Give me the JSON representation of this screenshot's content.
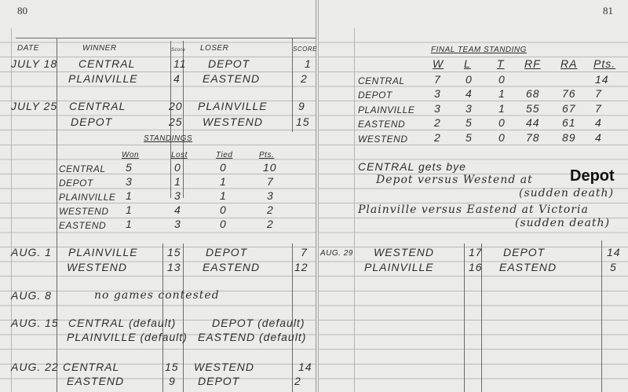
{
  "left_page": {
    "page_number": "80",
    "headers": {
      "date": "DATE",
      "winner": "WINNER",
      "winner_score": "Score",
      "loser": "LOSER",
      "loser_score": "SCORE"
    },
    "games": [
      {
        "date": "JULY 18",
        "winner": "CENTRAL",
        "ws": "11",
        "loser": "DEPOT",
        "ls": "1"
      },
      {
        "date": "",
        "winner": "PLAINVILLE",
        "ws": "4",
        "loser": "EASTEND",
        "ls": "2"
      },
      {
        "date": "JULY 25",
        "winner": "CENTRAL",
        "ws": "20",
        "loser": "PLAINVILLE",
        "ls": "9"
      },
      {
        "date": "",
        "winner": "DEPOT",
        "ws": "25",
        "loser": "WESTEND",
        "ls": "15"
      },
      {
        "date": "AUG. 1",
        "winner": "PLAINVILLE",
        "ws": "15",
        "loser": "DEPOT",
        "ls": "7"
      },
      {
        "date": "",
        "winner": "WESTEND",
        "ws": "13",
        "loser": "EASTEND",
        "ls": "12"
      },
      {
        "date": "AUG. 15",
        "winner": "CENTRAL (default)",
        "loser": "DEPOT (default)"
      },
      {
        "date": "",
        "winner": "PLAINVILLE (default)",
        "loser": "EASTEND (default)"
      },
      {
        "date": "AUG. 22",
        "winner": "CENTRAL",
        "ws": "15",
        "loser": "WESTEND",
        "ls": "14"
      },
      {
        "date": "",
        "winner": "EASTEND",
        "ws": "9",
        "loser": "DEPOT",
        "ls": "2"
      }
    ],
    "aug8": {
      "date": "AUG. 8",
      "note": "no games contested"
    },
    "standings": {
      "title": "STANDINGS",
      "headers": [
        "Won",
        "Lost",
        "Tied",
        "Pts."
      ],
      "rows": [
        {
          "team": "CENTRAL",
          "won": "5",
          "lost": "0",
          "tied": "0",
          "pts": "10"
        },
        {
          "team": "DEPOT",
          "won": "3",
          "lost": "1",
          "tied": "1",
          "pts": "7"
        },
        {
          "team": "PLAINVILLE",
          "won": "1",
          "lost": "3",
          "tied": "1",
          "pts": "3"
        },
        {
          "team": "WESTEND",
          "won": "1",
          "lost": "4",
          "tied": "0",
          "pts": "2"
        },
        {
          "team": "EASTEND",
          "won": "1",
          "lost": "3",
          "tied": "0",
          "pts": "2"
        }
      ]
    }
  },
  "right_page": {
    "page_number": "81",
    "final": {
      "title": "FINAL TEAM STANDING",
      "headers": [
        "W",
        "L",
        "T",
        "RF",
        "RA",
        "Pts."
      ],
      "rows": [
        {
          "team": "CENTRAL",
          "w": "7",
          "l": "0",
          "t": "0",
          "rf": "",
          "ra": "",
          "pts": "14"
        },
        {
          "team": "DEPOT",
          "w": "3",
          "l": "4",
          "t": "1",
          "rf": "68",
          "ra": "76",
          "pts": "7"
        },
        {
          "team": "PLAINVILLE",
          "w": "3",
          "l": "3",
          "t": "1",
          "rf": "55",
          "ra": "67",
          "pts": "7"
        },
        {
          "team": "EASTEND",
          "w": "2",
          "l": "5",
          "t": "0",
          "rf": "44",
          "ra": "61",
          "pts": "4"
        },
        {
          "team": "WESTEND",
          "w": "2",
          "l": "5",
          "t": "0",
          "rf": "78",
          "ra": "89",
          "pts": "4"
        }
      ]
    },
    "notes": {
      "bye": "CENTRAL gets bye",
      "game1": "Depot versus Westend at",
      "game1_site": "Depot",
      "game1_note": "(sudden death)",
      "game2": "Plainville versus Eastend at Victoria",
      "game2_note": "(sudden death)"
    },
    "games": [
      {
        "date": "AUG. 29",
        "winner": "WESTEND",
        "ws": "17",
        "loser": "DEPOT",
        "ls": "14"
      },
      {
        "date": "",
        "winner": "PLAINVILLE",
        "ws": "16",
        "loser": "EASTEND",
        "ls": "5"
      }
    ]
  }
}
